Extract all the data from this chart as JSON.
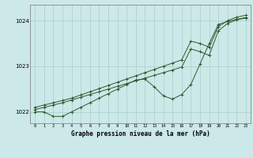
{
  "bg_color": "#cce8e8",
  "grid_color": "#aacece",
  "line_color": "#2d5a2d",
  "title": "Graphe pression niveau de la mer (hPa)",
  "ylim": [
    1021.75,
    1024.35
  ],
  "xlim": [
    -0.5,
    23.5
  ],
  "yticks": [
    1022,
    1023,
    1024
  ],
  "xticks": [
    0,
    1,
    2,
    3,
    4,
    5,
    6,
    7,
    8,
    9,
    10,
    11,
    12,
    13,
    14,
    15,
    16,
    17,
    18,
    19,
    20,
    21,
    22,
    23
  ],
  "s1_x": [
    0,
    1,
    2,
    3,
    4,
    5,
    6,
    7,
    8,
    9,
    10,
    11,
    12,
    13,
    14,
    15,
    16,
    17,
    18,
    19,
    20,
    21,
    22,
    23
  ],
  "s1_y": [
    1022.1,
    1022.15,
    1022.2,
    1022.25,
    1022.3,
    1022.37,
    1022.44,
    1022.51,
    1022.58,
    1022.65,
    1022.72,
    1022.79,
    1022.86,
    1022.93,
    1023.0,
    1023.07,
    1023.14,
    1023.55,
    1023.5,
    1023.42,
    1023.87,
    1024.0,
    1024.08,
    1024.12
  ],
  "s2_x": [
    0,
    1,
    2,
    3,
    4,
    5,
    6,
    7,
    8,
    9,
    10,
    11,
    12,
    13,
    14,
    15,
    16,
    17,
    18,
    19,
    20,
    21,
    22,
    23
  ],
  "s2_y": [
    1022.05,
    1022.1,
    1022.15,
    1022.2,
    1022.26,
    1022.32,
    1022.38,
    1022.44,
    1022.5,
    1022.56,
    1022.62,
    1022.68,
    1022.74,
    1022.8,
    1022.86,
    1022.92,
    1022.98,
    1023.38,
    1023.32,
    1023.24,
    1023.78,
    1023.94,
    1024.02,
    1024.06
  ],
  "s3_x": [
    0,
    1,
    2,
    3,
    4,
    5,
    6,
    7,
    8,
    9,
    10,
    11,
    12,
    13,
    14,
    15,
    16,
    17,
    18,
    19,
    20,
    21,
    22,
    23
  ],
  "s3_y": [
    1022.0,
    1022.0,
    1021.9,
    1021.9,
    1022.0,
    1022.1,
    1022.2,
    1022.3,
    1022.4,
    1022.5,
    1022.6,
    1022.7,
    1022.72,
    1022.55,
    1022.35,
    1022.28,
    1022.38,
    1022.6,
    1023.05,
    1023.5,
    1023.92,
    1023.98,
    1024.03,
    1024.07
  ]
}
